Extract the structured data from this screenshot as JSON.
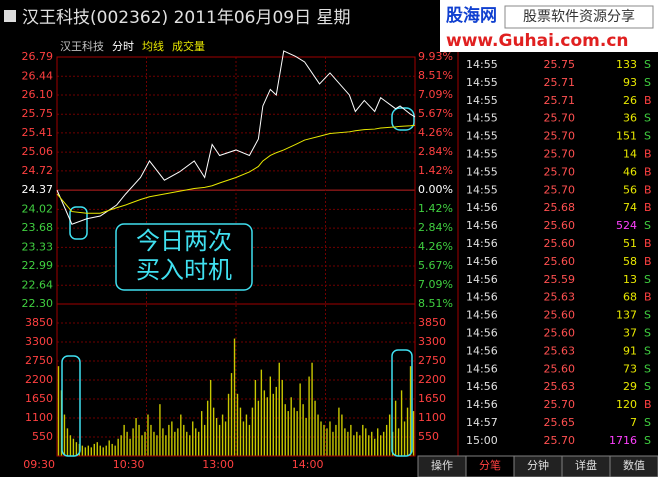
{
  "header": {
    "title": "汉王科技(002362) 2011年06月09日 星期",
    "logo": "股海网",
    "site": "www.Guhai.com.cn",
    "slogan": "股票软件资源分享"
  },
  "chart_data": [
    {
      "type": "line",
      "labels": [
        "汉王科技",
        "分时",
        "均线",
        "成交量"
      ],
      "x": [
        0,
        10,
        20,
        29,
        40,
        46,
        56,
        62,
        72,
        82,
        92,
        99,
        104,
        109,
        120,
        129,
        135,
        138,
        143,
        147,
        152,
        160,
        166,
        176,
        183,
        196,
        200,
        206,
        213,
        217,
        227,
        230,
        237,
        240
      ],
      "series": [
        {
          "color": "#ffffff",
          "values": [
            24.37,
            23.75,
            23.85,
            23.9,
            24.1,
            24.3,
            24.6,
            24.9,
            24.55,
            24.7,
            24.9,
            24.6,
            25.2,
            25.0,
            25.1,
            25.0,
            25.3,
            25.9,
            26.2,
            26.1,
            26.9,
            26.8,
            26.7,
            26.3,
            26.5,
            26.1,
            25.8,
            26.0,
            25.8,
            26.05,
            25.85,
            25.9,
            25.75,
            25.7
          ]
        },
        {
          "color": "#e8e800",
          "values": [
            24.3,
            23.98,
            23.95,
            23.95,
            24.05,
            24.1,
            24.2,
            24.25,
            24.3,
            24.35,
            24.4,
            24.42,
            24.45,
            24.5,
            24.6,
            24.7,
            24.8,
            24.9,
            25.0,
            25.05,
            25.1,
            25.2,
            25.28,
            25.35,
            25.4,
            25.43,
            25.45,
            25.47,
            25.48,
            25.5,
            25.52,
            25.53,
            25.54,
            25.55
          ]
        }
      ],
      "xlim": [
        0,
        240
      ],
      "xticks": [
        {
          "value": 0,
          "label": "09:30"
        },
        {
          "value": 60,
          "label": "10:30"
        },
        {
          "value": 120,
          "label": "13:00"
        },
        {
          "value": 180,
          "label": "14:00"
        }
      ],
      "ylim": [
        22.3,
        26.79
      ],
      "yticks": [
        {
          "value": 26.79,
          "label": "26.79"
        },
        {
          "value": 26.44,
          "label": "26.44"
        },
        {
          "value": 26.1,
          "label": "26.10"
        },
        {
          "value": 25.75,
          "label": "25.75"
        },
        {
          "value": 25.41,
          "label": "25.41"
        },
        {
          "value": 25.06,
          "label": "25.06"
        },
        {
          "value": 24.72,
          "label": "24.72"
        },
        {
          "value": 24.37,
          "label": "24.37"
        },
        {
          "value": 24.02,
          "label": "24.02"
        },
        {
          "value": 23.68,
          "label": "23.68"
        },
        {
          "value": 23.33,
          "label": "23.33"
        },
        {
          "value": 22.99,
          "label": "22.99"
        },
        {
          "value": 22.64,
          "label": "22.64"
        },
        {
          "value": 22.3,
          "label": "22.30"
        }
      ],
      "y2lim": [
        -8.51,
        9.93
      ],
      "y2ticks": [
        {
          "value": 9.93,
          "label": "9.93%"
        },
        {
          "value": 8.51,
          "label": "8.51%"
        },
        {
          "value": 7.09,
          "label": "7.09%"
        },
        {
          "value": 5.67,
          "label": "5.67%"
        },
        {
          "value": 4.26,
          "label": "4.26%"
        },
        {
          "value": 2.84,
          "label": "2.84%"
        },
        {
          "value": 1.42,
          "label": "1.42%"
        },
        {
          "value": 0,
          "label": "0.00%"
        },
        {
          "value": -1.42,
          "label": "1.42%"
        },
        {
          "value": -2.84,
          "label": "2.84%"
        },
        {
          "value": -4.26,
          "label": "4.26%"
        },
        {
          "value": -5.67,
          "label": "5.67%"
        },
        {
          "value": -7.09,
          "label": "7.09%"
        },
        {
          "value": -8.51,
          "label": "8.51%"
        }
      ],
      "annotation": [
        "今日两次",
        "买入时机"
      ]
    },
    {
      "type": "bar",
      "color": "#c8c800",
      "x": [
        1,
        3,
        5,
        7,
        9,
        11,
        13,
        15,
        17,
        19,
        21,
        23,
        25,
        27,
        29,
        31,
        33,
        35,
        37,
        39,
        41,
        43,
        45,
        47,
        49,
        51,
        53,
        55,
        57,
        59,
        61,
        63,
        65,
        67,
        69,
        71,
        73,
        75,
        77,
        79,
        81,
        83,
        85,
        87,
        89,
        91,
        93,
        95,
        97,
        99,
        101,
        103,
        105,
        107,
        109,
        111,
        113,
        115,
        117,
        119,
        121,
        123,
        125,
        127,
        129,
        131,
        133,
        135,
        137,
        139,
        141,
        143,
        145,
        147,
        149,
        151,
        153,
        155,
        157,
        159,
        161,
        163,
        165,
        167,
        169,
        171,
        173,
        175,
        177,
        179,
        181,
        183,
        185,
        187,
        189,
        191,
        193,
        195,
        197,
        199,
        201,
        203,
        205,
        207,
        209,
        211,
        213,
        215,
        217,
        219,
        221,
        223,
        225,
        227,
        229,
        231,
        233,
        235,
        237,
        239
      ],
      "values": [
        2600,
        1900,
        1200,
        800,
        600,
        500,
        400,
        350,
        300,
        250,
        300,
        250,
        350,
        400,
        300,
        250,
        300,
        450,
        350,
        300,
        500,
        600,
        900,
        700,
        500,
        800,
        1100,
        900,
        600,
        700,
        1200,
        900,
        700,
        600,
        1500,
        800,
        600,
        900,
        1000,
        700,
        800,
        1200,
        900,
        700,
        600,
        1000,
        800,
        700,
        1300,
        900,
        1600,
        2200,
        1400,
        1100,
        900,
        1200,
        1000,
        1800,
        2400,
        3400,
        1800,
        1400,
        1000,
        1200,
        900,
        1400,
        2200,
        1600,
        2500,
        1900,
        1700,
        2300,
        1800,
        2000,
        2700,
        2200,
        1500,
        1300,
        1700,
        1400,
        1300,
        2100,
        1500,
        1100,
        2300,
        2700,
        1600,
        1200,
        1000,
        900,
        800,
        1000,
        700,
        900,
        1400,
        1200,
        800,
        700,
        900,
        600,
        700,
        600,
        900,
        800,
        600,
        700,
        500,
        800,
        600,
        700,
        900,
        1200,
        700,
        1600,
        800,
        1900,
        1000,
        1400,
        2600,
        1300
      ],
      "xlim": [
        0,
        240
      ],
      "ylim": [
        0,
        4400
      ],
      "yticks": [
        3850,
        3300,
        2750,
        2200,
        1650,
        1100,
        550
      ]
    }
  ],
  "trades": {
    "rows": [
      [
        "14:55",
        "25.75",
        "133",
        "S"
      ],
      [
        "14:55",
        "25.71",
        "93",
        "S"
      ],
      [
        "14:55",
        "25.71",
        "26",
        "B"
      ],
      [
        "14:55",
        "25.70",
        "36",
        "S"
      ],
      [
        "14:55",
        "25.70",
        "151",
        "S"
      ],
      [
        "14:55",
        "25.70",
        "14",
        "B"
      ],
      [
        "14:55",
        "25.70",
        "46",
        "B"
      ],
      [
        "14:55",
        "25.70",
        "56",
        "B"
      ],
      [
        "14:56",
        "25.68",
        "74",
        "B"
      ],
      [
        "14:56",
        "25.60",
        "524",
        "S"
      ],
      [
        "14:56",
        "25.60",
        "51",
        "B"
      ],
      [
        "14:56",
        "25.60",
        "58",
        "B"
      ],
      [
        "14:56",
        "25.59",
        "13",
        "S"
      ],
      [
        "14:56",
        "25.63",
        "68",
        "B"
      ],
      [
        "14:56",
        "25.60",
        "137",
        "S"
      ],
      [
        "14:56",
        "25.60",
        "37",
        "S"
      ],
      [
        "14:56",
        "25.63",
        "91",
        "S"
      ],
      [
        "14:56",
        "25.60",
        "73",
        "S"
      ],
      [
        "14:56",
        "25.63",
        "29",
        "S"
      ],
      [
        "14:56",
        "25.70",
        "120",
        "B"
      ],
      [
        "14:57",
        "25.65",
        "7",
        "S"
      ],
      [
        "15:00",
        "25.70",
        "1716",
        "S"
      ]
    ]
  },
  "tabs": [
    "操作",
    "分笔",
    "分钟",
    "详盘",
    "数值"
  ]
}
